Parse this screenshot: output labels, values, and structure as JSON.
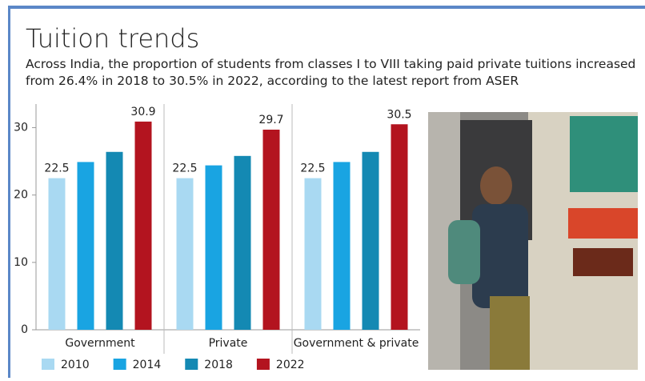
{
  "chart_data": {
    "type": "bar",
    "title": "Tuition trends",
    "subtitle": "Across India, the proportion of students from classes I to VIII taking paid private tuitions increased from 26.4% in 2018 to 30.5% in 2022, according to the latest report from ASER",
    "categories": [
      "Government",
      "Private",
      "Government & private"
    ],
    "series": [
      {
        "name": "2010",
        "color": "#a9d9f2",
        "values": [
          22.5,
          22.5,
          22.5
        ],
        "data_labels": true
      },
      {
        "name": "2014",
        "color": "#19a4e2",
        "values": [
          24.9,
          24.4,
          24.9
        ],
        "data_labels": false
      },
      {
        "name": "2018",
        "color": "#1489b3",
        "values": [
          26.4,
          25.8,
          26.4
        ],
        "data_labels": false
      },
      {
        "name": "2022",
        "color": "#b3141f",
        "values": [
          30.9,
          29.7,
          30.5
        ],
        "data_labels": true
      }
    ],
    "ylim": [
      0,
      33.5
    ],
    "yticks": [
      0,
      10,
      20,
      30
    ],
    "grid": false,
    "legend": "bottom"
  }
}
